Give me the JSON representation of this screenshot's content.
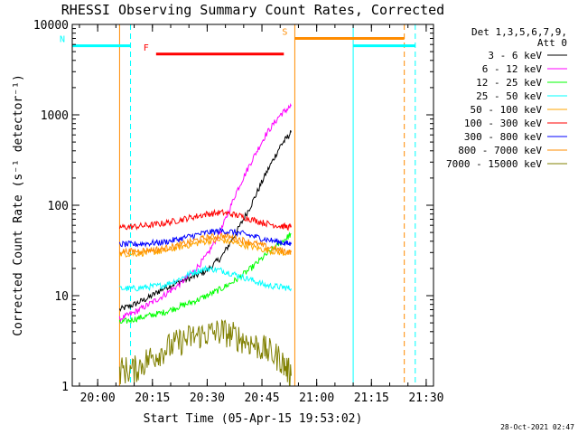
{
  "chart_data": {
    "type": "line",
    "title": "RHESSI Observing Summary Count Rates, Corrected",
    "xlabel": "Start Time (05-Apr-15 19:53:02)",
    "ylabel": "Corrected Count Rate (s⁻¹ detector⁻¹)",
    "yscale": "log",
    "ylim": [
      1,
      10000
    ],
    "xlim": [
      "19:53:02",
      "21:32:00"
    ],
    "xticks": [
      "20:00",
      "20:15",
      "20:30",
      "20:45",
      "21:00",
      "21:15",
      "21:30"
    ],
    "yticks": [
      {
        "value": 1,
        "label": "1"
      },
      {
        "value": 10,
        "label": "10"
      },
      {
        "value": 100,
        "label": "100"
      },
      {
        "value": 1000,
        "label": "1000"
      },
      {
        "value": 10000,
        "label": "10000"
      }
    ],
    "legend_header": [
      "Det 1,3,5,6,7,9,",
      "Att 0"
    ],
    "legend_position": "top-right, outside plot",
    "series": [
      {
        "name": "3 - 6 keV",
        "color": "#000000",
        "x": [
          "20:06",
          "20:10",
          "20:14",
          "20:18",
          "20:22",
          "20:26",
          "20:30",
          "20:34",
          "20:38",
          "20:42",
          "20:46",
          "20:50",
          "20:53"
        ],
        "y": [
          7,
          8,
          9.5,
          12,
          14,
          16,
          19,
          27,
          50,
          100,
          220,
          450,
          640
        ]
      },
      {
        "name": "6 - 12 keV",
        "color": "#ff00ff",
        "x": [
          "20:06",
          "20:10",
          "20:14",
          "20:18",
          "20:22",
          "20:26",
          "20:30",
          "20:34",
          "20:38",
          "20:42",
          "20:46",
          "20:50",
          "20:53"
        ],
        "y": [
          5.5,
          6.5,
          8,
          10,
          13,
          18,
          28,
          55,
          140,
          300,
          600,
          1000,
          1250
        ]
      },
      {
        "name": "12 - 25 keV",
        "color": "#00ff00",
        "x": [
          "20:06",
          "20:10",
          "20:14",
          "20:18",
          "20:22",
          "20:26",
          "20:30",
          "20:34",
          "20:38",
          "20:42",
          "20:46",
          "20:50",
          "20:53"
        ],
        "y": [
          5,
          5.5,
          6,
          6.5,
          7.5,
          8.5,
          10,
          12,
          15,
          20,
          28,
          38,
          48
        ]
      },
      {
        "name": "25 - 50 keV",
        "color": "#00ffff",
        "x": [
          "20:06",
          "20:10",
          "20:14",
          "20:18",
          "20:22",
          "20:26",
          "20:30",
          "20:34",
          "20:38",
          "20:42",
          "20:46",
          "20:50",
          "20:53"
        ],
        "y": [
          12,
          12,
          12.5,
          13,
          15,
          18,
          20,
          19,
          17,
          15,
          13,
          12.5,
          12
        ]
      },
      {
        "name": "50 - 100 keV",
        "color": "#ffa500",
        "x": [
          "20:06",
          "20:10",
          "20:14",
          "20:18",
          "20:22",
          "20:26",
          "20:30",
          "20:34",
          "20:38",
          "20:42",
          "20:46",
          "20:50",
          "20:53"
        ],
        "y": [
          29,
          29,
          30,
          31,
          34,
          37,
          40,
          41,
          38,
          35,
          32,
          30,
          29
        ]
      },
      {
        "name": "100 - 300 keV",
        "color": "#ff0000",
        "x": [
          "20:06",
          "20:10",
          "20:14",
          "20:18",
          "20:22",
          "20:26",
          "20:30",
          "20:34",
          "20:38",
          "20:42",
          "20:46",
          "20:50",
          "20:53"
        ],
        "y": [
          57,
          58,
          60,
          63,
          68,
          74,
          80,
          83,
          78,
          70,
          63,
          59,
          57
        ]
      },
      {
        "name": "300 - 800 keV",
        "color": "#0000ff",
        "x": [
          "20:06",
          "20:10",
          "20:14",
          "20:18",
          "20:22",
          "20:26",
          "20:30",
          "20:34",
          "20:38",
          "20:42",
          "20:46",
          "20:50",
          "20:53"
        ],
        "y": [
          37,
          37,
          38,
          39,
          42,
          46,
          50,
          52,
          50,
          46,
          42,
          39,
          37
        ]
      },
      {
        "name": "800 - 7000 keV",
        "color": "#ff8c00",
        "x": [
          "20:06",
          "20:10",
          "20:14",
          "20:18",
          "20:22",
          "20:26",
          "20:30",
          "20:34",
          "20:38",
          "20:42",
          "20:46",
          "20:50",
          "20:53"
        ],
        "y": [
          31,
          31,
          32,
          33,
          36,
          40,
          44,
          46,
          43,
          39,
          35,
          32,
          30
        ]
      },
      {
        "name": "7000 - 15000 keV",
        "color": "#808000",
        "x": [
          "20:06",
          "20:10",
          "20:14",
          "20:18",
          "20:22",
          "20:26",
          "20:30",
          "20:34",
          "20:38",
          "20:42",
          "20:46",
          "20:50",
          "20:53"
        ],
        "y": [
          1.5,
          1.5,
          2,
          2.5,
          3,
          3.5,
          3.8,
          4,
          3.5,
          3,
          2.5,
          2,
          1.3
        ]
      }
    ],
    "bars": [
      {
        "label": "N",
        "color": "#00ffff",
        "x_from": "19:53:02",
        "x_to": "20:09",
        "y": 5800
      },
      {
        "label": "F",
        "color": "#ff0000",
        "x_from": "20:16",
        "x_to": "20:51",
        "y": 4700
      },
      {
        "label": "S",
        "color": "#ff8c00",
        "x_from": "20:54",
        "x_to": "21:24",
        "y": 7000
      },
      {
        "label": "",
        "color": "#00ffff",
        "x_from": "21:10",
        "x_to": "21:27",
        "y": 5800
      }
    ],
    "vlines": [
      {
        "x": "19:53:02",
        "color": "#00ffff",
        "style": "solid"
      },
      {
        "x": "20:09",
        "color": "#00ffff",
        "style": "dashed"
      },
      {
        "x": "20:06",
        "color": "#ff8c00",
        "style": "solid"
      },
      {
        "x": "20:54",
        "color": "#ff8c00",
        "style": "solid"
      },
      {
        "x": "21:10",
        "color": "#00ffff",
        "style": "solid"
      },
      {
        "x": "21:24",
        "color": "#ff8c00",
        "style": "dashed"
      },
      {
        "x": "21:27",
        "color": "#00ffff",
        "style": "dashed"
      }
    ],
    "footer": "28-Oct-2021 02:47"
  }
}
